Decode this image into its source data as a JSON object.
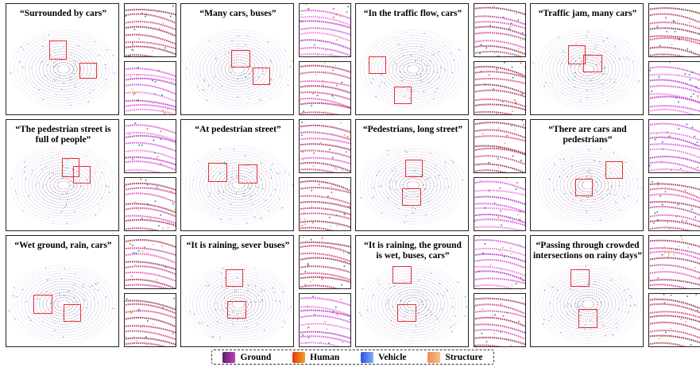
{
  "panels": [
    {
      "caption": "“Surrounded by cars”"
    },
    {
      "caption": "“Many cars, buses”"
    },
    {
      "caption": "“In the traffic flow, cars”"
    },
    {
      "caption": "“Traffic jam, many cars”"
    },
    {
      "caption": "“The pedestrian street is\nfull of people”"
    },
    {
      "caption": "“At pedestrian street”"
    },
    {
      "caption": "“Pedestrians, long street”"
    },
    {
      "caption": "“There are cars and\npedestrians”"
    },
    {
      "caption": "“Wet ground, rain, cars”"
    },
    {
      "caption": "“It is raining, sever buses”"
    },
    {
      "caption": "“It is raining, the ground\nis wet, buses, cars”"
    },
    {
      "caption": "“Passing through crowded\nintersections on rainy days”"
    }
  ],
  "legend": [
    {
      "label": "Ground",
      "color": "#7b2d86"
    },
    {
      "label": "Human",
      "color": "#f06a1c"
    },
    {
      "label": "Vehicle",
      "color": "#4a7bea"
    },
    {
      "label": "Structure",
      "color": "#f0a868"
    }
  ],
  "highlight_color": "#e03232"
}
